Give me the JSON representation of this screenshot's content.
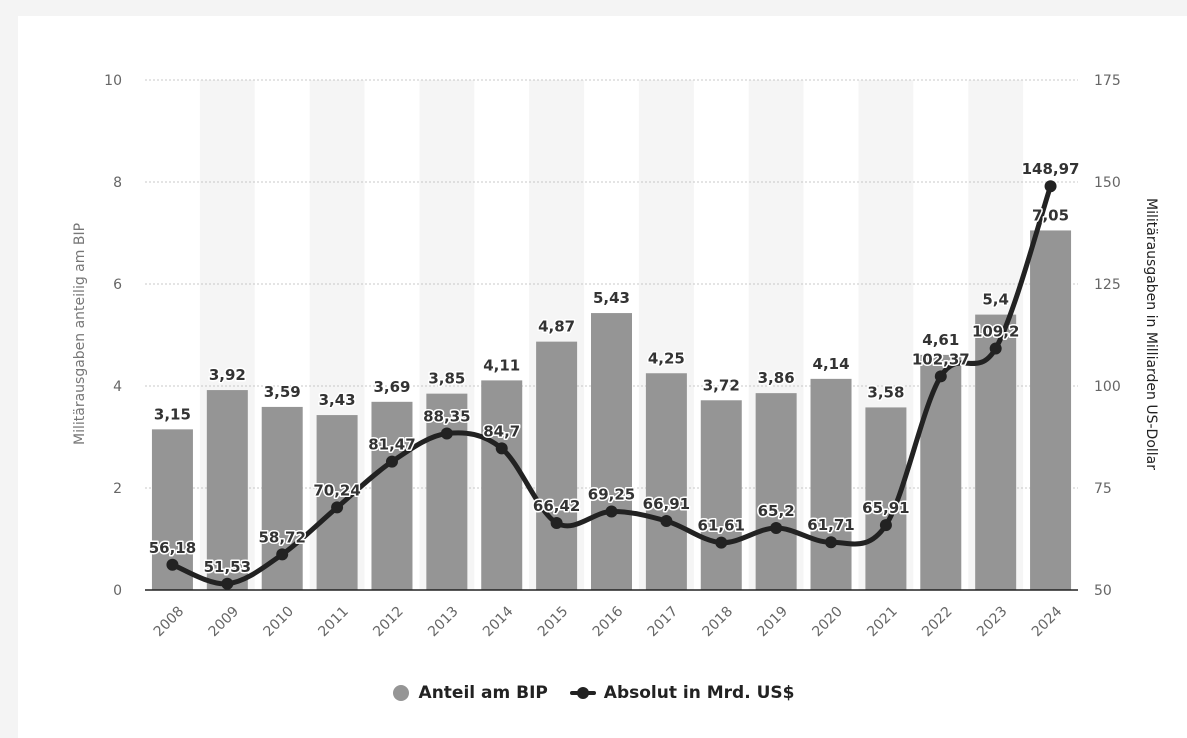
{
  "colors": {
    "bar": "#959595",
    "line": "#222222",
    "band": "#f5f5f5",
    "grid": "#c8c8c8",
    "axis": "#222222"
  },
  "chart_data": {
    "type": "bar+line",
    "categories": [
      "2008",
      "2009",
      "2010",
      "2011",
      "2012",
      "2013",
      "2014",
      "2015",
      "2016",
      "2017",
      "2018",
      "2019",
      "2020",
      "2021",
      "2022",
      "2023",
      "2024"
    ],
    "series": [
      {
        "name": "Anteil am BIP",
        "type": "bar",
        "axis": "left",
        "values": [
          3.15,
          3.92,
          3.59,
          3.43,
          3.69,
          3.85,
          4.11,
          4.87,
          5.43,
          4.25,
          3.72,
          3.86,
          4.14,
          3.58,
          4.61,
          5.4,
          7.05
        ],
        "labels": [
          "3,15",
          "3,92",
          "3,59",
          "3,43",
          "3,69",
          "3,85",
          "4,11",
          "4,87",
          "5,43",
          "4,25",
          "3,72",
          "3,86",
          "4,14",
          "3,58",
          "4,61",
          "5,4",
          "7,05"
        ]
      },
      {
        "name": "Absolut in Mrd. US$",
        "type": "line",
        "axis": "right",
        "values": [
          56.18,
          51.53,
          58.72,
          70.24,
          81.47,
          88.35,
          84.7,
          66.42,
          69.25,
          66.91,
          61.61,
          65.2,
          61.71,
          65.91,
          102.37,
          109.2,
          148.97
        ],
        "labels": [
          "56,18",
          "51,53",
          "58,72",
          "70,24",
          "81,47",
          "88,35",
          "84,7",
          "66,42",
          "69,25",
          "66,91",
          "61,61",
          "65,2",
          "61,71",
          "65,91",
          "102,37",
          "109,2",
          "148,97"
        ]
      }
    ],
    "y_left": {
      "label": "Militärausgaben anteilig am BIP",
      "range": [
        0,
        10
      ],
      "ticks": [
        0,
        2,
        4,
        6,
        8,
        10
      ],
      "tick_labels": [
        "0",
        "2",
        "4",
        "6",
        "8",
        "10"
      ]
    },
    "y_right": {
      "label": "Militärausgaben in Milliarden US-Dollar",
      "range": [
        50,
        175
      ],
      "ticks": [
        50,
        75,
        100,
        125,
        150,
        175
      ],
      "tick_labels": [
        "50",
        "75",
        "100",
        "125",
        "150",
        "175"
      ]
    },
    "grid": true,
    "legend_position": "bottom-center"
  },
  "legend": {
    "items": [
      {
        "label": "Anteil am BIP"
      },
      {
        "label": "Absolut in Mrd. US$"
      }
    ]
  }
}
